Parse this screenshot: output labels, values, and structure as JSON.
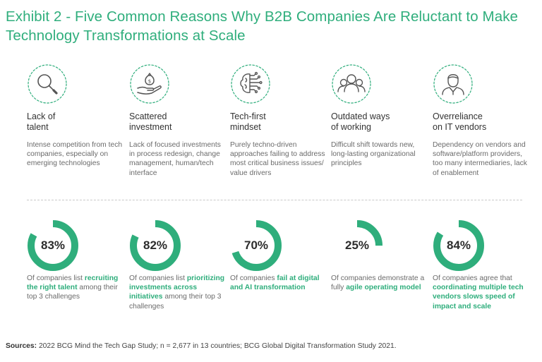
{
  "title": "Exhibit 2 - Five Common Reasons Why B2B Companies Are Reluctant to Make Technology Transformations at Scale",
  "accent_color": "#2fae7c",
  "track_color": "#e6e6e6",
  "columns": [
    {
      "icon": "magnifying-glass-icon",
      "heading_line1": "Lack of",
      "heading_line2": "talent",
      "description": "Intense competition from tech companies, especially on emerging technologies",
      "percent": 83,
      "percent_label": "83%",
      "stat_pre": "Of companies list ",
      "stat_highlight": "recruiting the right talent",
      "stat_post": " among their top 3 challenges"
    },
    {
      "icon": "hand-money-bag-icon",
      "heading_line1": "Scattered",
      "heading_line2": "investment",
      "description": "Lack of focused investments in process redesign, change management, human/tech interface",
      "percent": 82,
      "percent_label": "82%",
      "stat_pre": "Of companies list ",
      "stat_highlight": "prioritizing investments across initiatives",
      "stat_post": " among their top 3 challenges"
    },
    {
      "icon": "brain-circuit-icon",
      "heading_line1": "Tech-first",
      "heading_line2": "mindset",
      "description": "Purely techno-driven approaches failing to address most critical business issues/ value drivers",
      "percent": 70,
      "percent_label": "70%",
      "stat_pre": "Of companies ",
      "stat_highlight": "fail at digital and AI transformation",
      "stat_post": ""
    },
    {
      "icon": "people-group-icon",
      "heading_line1": "Outdated ways",
      "heading_line2": "of working",
      "description": "Difficult shift towards new, long-lasting organizational principles",
      "percent": 25,
      "percent_label": "25%",
      "stat_pre": "Of companies demonstrate a fully ",
      "stat_highlight": "agile operating model",
      "stat_post": ""
    },
    {
      "icon": "vendor-person-icon",
      "heading_line1": "Overreliance",
      "heading_line2": "on IT vendors",
      "description": "Dependency on vendors and software/platform providers, too many intermediaries, lack of enablement",
      "percent": 84,
      "percent_label": "84%",
      "stat_pre": "Of companies agree that ",
      "stat_highlight": "coordinating multiple tech vendors slows speed of impact and scale",
      "stat_post": ""
    }
  ],
  "chart_data": {
    "type": "pie",
    "categories": [
      "Lack of talent",
      "Scattered investment",
      "Tech-first mindset",
      "Outdated ways of working",
      "Overreliance on IT vendors"
    ],
    "values": [
      83,
      82,
      70,
      25,
      84
    ],
    "unit": "%"
  },
  "sources": {
    "label": "Sources:",
    "text": " 2022 BCG Mind the Tech Gap Study; n = 2,677 in 13 countries; BCG Global Digital Transformation Study 2021."
  }
}
